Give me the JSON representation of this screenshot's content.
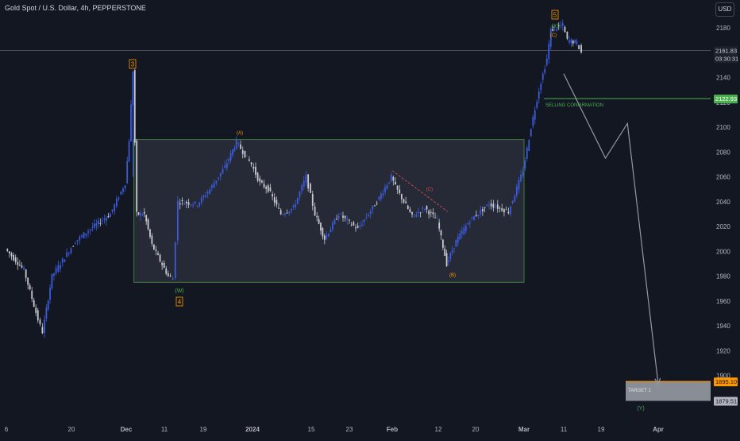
{
  "header": {
    "title": "Gold Spot / U.S. Dollar, 4h, PEPPERSTONE"
  },
  "currency": "USD",
  "colors": {
    "background": "#131722",
    "candle_up": "#3b5bdb",
    "candle_down": "#c8cad0",
    "range_box": "#2a2e39",
    "range_border": "#3e7d3e",
    "green": "#4caf50",
    "orange": "#ff9800",
    "red_dash": "#d05050",
    "path_arrow": "#9598a1"
  },
  "price_tags": {
    "current": "2161.83",
    "countdown": "03:30:31",
    "selling_level": "2122.93",
    "target_top": "1895.10",
    "target_bottom": "1879.51"
  },
  "annotations": {
    "selling_confirmation": "SELLING CONFIRMATION",
    "target": "TARGET 1"
  },
  "wave_labels": {
    "w3": "3",
    "w4": "4",
    "w5": "5",
    "W": "(W)",
    "X": "(X)",
    "Y": "(Y)",
    "A": "(A)",
    "B": "(B)",
    "C_top": "(C)",
    "C_mid": "(C)"
  },
  "chart_data": {
    "type": "candlestick",
    "title": "Gold Spot / U.S. Dollar, 4h, PEPPERSTONE",
    "y_axis": {
      "range": [
        1870,
        2195
      ],
      "ticks": [
        2180,
        2160,
        2140,
        2120,
        2100,
        2080,
        2060,
        2040,
        2020,
        2000,
        1980,
        1960,
        1940,
        1920,
        1900
      ]
    },
    "x_axis": {
      "ticks": [
        "6",
        "20",
        "Dec",
        "11",
        "19",
        "2024",
        "15",
        "23",
        "Feb",
        "12",
        "20",
        "Mar",
        "11",
        "19",
        "Apr"
      ]
    },
    "price_path": [
      [
        "Nov 6",
        2002
      ],
      [
        "Nov 10",
        1985
      ],
      [
        "Nov 13",
        1945
      ],
      [
        "Nov 14",
        1935
      ],
      [
        "Nov 16",
        1980
      ],
      [
        "Nov 21",
        2008
      ],
      [
        "Nov 24",
        2018
      ],
      [
        "Nov 28",
        2030
      ],
      [
        "Dec 1",
        2055
      ],
      [
        "Dec 2",
        2090
      ],
      [
        "Dec 3",
        2145
      ],
      [
        "Dec 4",
        2030
      ],
      [
        "Dec 6",
        2030
      ],
      [
        "Dec 8",
        2005
      ],
      [
        "Dec 12",
        1980
      ],
      [
        "Dec 13",
        1978
      ],
      [
        "Dec 14",
        2040
      ],
      [
        "Dec 18",
        2038
      ],
      [
        "Dec 21",
        2050
      ],
      [
        "Dec 25",
        2068
      ],
      [
        "Dec 28",
        2088
      ],
      [
        "Jan 1",
        2070
      ],
      [
        "Jan 3",
        2055
      ],
      [
        "Jan 5",
        2050
      ],
      [
        "Jan 8",
        2030
      ],
      [
        "Jan 11",
        2035
      ],
      [
        "Jan 14",
        2060
      ],
      [
        "Jan 16",
        2030
      ],
      [
        "Jan 18",
        2010
      ],
      [
        "Jan 21",
        2030
      ],
      [
        "Jan 25",
        2018
      ],
      [
        "Jan 29",
        2040
      ],
      [
        "Feb 1",
        2060
      ],
      [
        "Feb 2",
        2052
      ],
      [
        "Feb 6",
        2028
      ],
      [
        "Feb 9",
        2035
      ],
      [
        "Feb 12",
        2025
      ],
      [
        "Feb 14",
        1990
      ],
      [
        "Feb 16",
        2008
      ],
      [
        "Feb 19",
        2025
      ],
      [
        "Feb 23",
        2038
      ],
      [
        "Feb 27",
        2032
      ],
      [
        "Mar 1",
        2065
      ],
      [
        "Mar 3",
        2100
      ],
      [
        "Mar 5",
        2130
      ],
      [
        "Mar 7",
        2155
      ],
      [
        "Mar 8",
        2178
      ],
      [
        "Mar 11",
        2182
      ],
      [
        "Mar 12",
        2170
      ],
      [
        "Mar 14",
        2168
      ],
      [
        "Mar 15",
        2160
      ]
    ],
    "levels": [
      {
        "price": 2161.83,
        "label": "2161.83"
      },
      {
        "price": 2122.93,
        "label": "2122.93"
      }
    ],
    "range_box": {
      "from": "Dec 3",
      "to": "Mar 1",
      "top": 2090,
      "bottom": 1975
    },
    "target_zone": {
      "top": 1895.1,
      "bottom": 1879.51
    },
    "projection_path": [
      [
        "Mar 11",
        2143
      ],
      [
        "Mar 20",
        2075
      ],
      [
        "Mar 25",
        2103
      ],
      [
        "Apr 1",
        1893
      ]
    ]
  }
}
